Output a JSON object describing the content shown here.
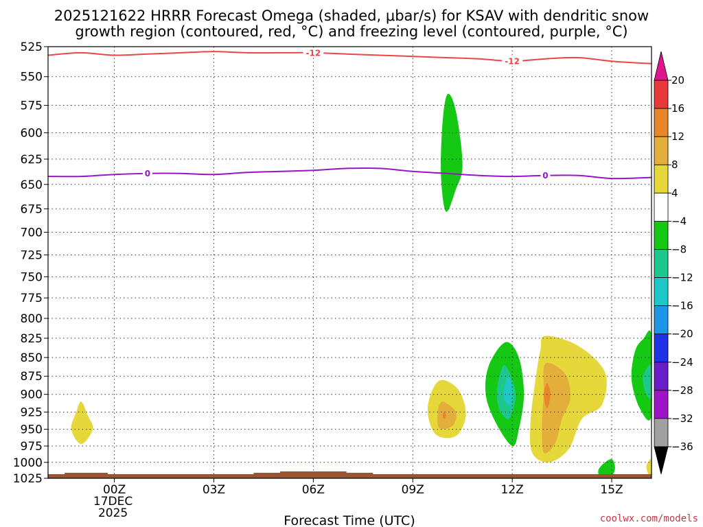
{
  "title": {
    "line1": "2025121622 HRRR Forecast Omega (shaded, μbar/s) for KSAV with dendritic snow",
    "line2": "growth region (contoured, red, °C) and freezing level (contoured, purple, °C)"
  },
  "watermark": "coolwx.com/models",
  "chart_data": {
    "type": "time-height cross section",
    "title": "2025121622 HRRR Forecast Omega (shaded, μbar/s) for KSAV with dendritic snow growth region (contoured, red, °C) and freezing level (contoured, purple, °C)",
    "xlabel": "Forecast Time (UTC)",
    "ylabel": "",
    "x_unit": "hours after 00Z 17DEC 2025",
    "xlim": [
      -2,
      16.2
    ],
    "x_ticks": [
      {
        "value": 0,
        "label": "00Z",
        "sub1": "17DEC",
        "sub2": "2025"
      },
      {
        "value": 3,
        "label": "03Z"
      },
      {
        "value": 6,
        "label": "06Z"
      },
      {
        "value": 9,
        "label": "09Z"
      },
      {
        "value": 12,
        "label": "12Z"
      },
      {
        "value": 15,
        "label": "15Z"
      }
    ],
    "ylim": [
      525,
      1025
    ],
    "y_ticks": [
      525,
      550,
      575,
      600,
      625,
      650,
      675,
      700,
      725,
      750,
      775,
      800,
      825,
      850,
      875,
      900,
      925,
      950,
      975,
      1000,
      1025
    ],
    "grid": "dotted",
    "colorbar": {
      "levels": [
        20,
        16,
        12,
        8,
        4,
        -4,
        -8,
        -12,
        -16,
        -20,
        -24,
        -28,
        -32,
        -36
      ],
      "colors": [
        "#e83a3a",
        "#e8862a",
        "#e4ae3a",
        "#e6d83a",
        "#ffffff",
        "#14c814",
        "#1ec88c",
        "#1ec8c8",
        "#1e96e6",
        "#1e32e6",
        "#6a1ec8",
        "#a014c8",
        "#a0a0a0"
      ],
      "top_arrow_color": "#e0148c",
      "bottom_arrow_color": "#000000"
    },
    "omega_features": [
      {
        "label": "ascent",
        "color": "#14c814",
        "outline": [
          [
            10.05,
            565
          ],
          [
            10.3,
            580
          ],
          [
            10.5,
            630
          ],
          [
            10.3,
            655
          ],
          [
            10.0,
            678
          ],
          [
            9.85,
            640
          ],
          [
            9.9,
            590
          ]
        ]
      },
      {
        "label": "descent",
        "color": "#e6d83a",
        "outline": [
          [
            -1.0,
            910
          ],
          [
            -0.8,
            930
          ],
          [
            -0.65,
            950
          ],
          [
            -1.0,
            972
          ],
          [
            -1.3,
            950
          ],
          [
            -1.15,
            925
          ]
        ]
      },
      {
        "label": "descent",
        "color": "#e6d83a",
        "outline": [
          [
            9.9,
            880
          ],
          [
            10.4,
            895
          ],
          [
            10.6,
            930
          ],
          [
            10.3,
            960
          ],
          [
            9.7,
            958
          ],
          [
            9.45,
            925
          ],
          [
            9.6,
            893
          ]
        ]
      },
      {
        "label": "descent",
        "color": "#e4ae3a",
        "outline": [
          [
            9.9,
            910
          ],
          [
            10.3,
            925
          ],
          [
            10.2,
            945
          ],
          [
            9.8,
            948
          ],
          [
            9.75,
            925
          ]
        ]
      },
      {
        "label": "descent",
        "color": "#e8862a",
        "outline": [
          [
            9.95,
            925
          ],
          [
            10.0,
            930
          ],
          [
            9.95,
            935
          ],
          [
            9.9,
            930
          ]
        ]
      },
      {
        "label": "ascent",
        "color": "#14c814",
        "outline": [
          [
            11.8,
            830
          ],
          [
            12.2,
            850
          ],
          [
            12.35,
            900
          ],
          [
            12.2,
            950
          ],
          [
            12.0,
            975
          ],
          [
            11.5,
            940
          ],
          [
            11.2,
            900
          ],
          [
            11.3,
            860
          ]
        ]
      },
      {
        "label": "ascent",
        "color": "#1ec88c",
        "outline": [
          [
            11.75,
            860
          ],
          [
            12.0,
            880
          ],
          [
            12.1,
            905
          ],
          [
            11.9,
            935
          ],
          [
            11.6,
            920
          ],
          [
            11.55,
            890
          ]
        ]
      },
      {
        "label": "ascent",
        "color": "#1ec8c8",
        "outline": [
          [
            11.9,
            875
          ],
          [
            12.0,
            895
          ],
          [
            11.95,
            915
          ],
          [
            11.75,
            905
          ],
          [
            11.8,
            885
          ]
        ]
      },
      {
        "label": "descent",
        "color": "#e6d83a",
        "outline": [
          [
            13.0,
            822
          ],
          [
            14.0,
            835
          ],
          [
            14.8,
            870
          ],
          [
            14.7,
            915
          ],
          [
            14.1,
            935
          ],
          [
            13.7,
            980
          ],
          [
            13.1,
            1000
          ],
          [
            12.6,
            985
          ],
          [
            12.55,
            940
          ],
          [
            12.7,
            880
          ],
          [
            12.85,
            840
          ]
        ]
      },
      {
        "label": "descent",
        "color": "#e4ae3a",
        "outline": [
          [
            13.0,
            858
          ],
          [
            13.6,
            872
          ],
          [
            13.75,
            905
          ],
          [
            13.5,
            935
          ],
          [
            13.3,
            970
          ],
          [
            12.95,
            985
          ],
          [
            12.9,
            940
          ],
          [
            12.95,
            900
          ]
        ]
      },
      {
        "label": "descent",
        "color": "#e8862a",
        "outline": [
          [
            13.05,
            885
          ],
          [
            13.15,
            900
          ],
          [
            13.05,
            920
          ],
          [
            12.95,
            900
          ]
        ]
      },
      {
        "label": "ascent",
        "color": "#14c814",
        "outline": [
          [
            16.2,
            822
          ],
          [
            16.2,
            930
          ],
          [
            15.85,
            920
          ],
          [
            15.6,
            880
          ],
          [
            15.7,
            842
          ],
          [
            15.95,
            826
          ]
        ]
      },
      {
        "label": "ascent",
        "color": "#1ec88c",
        "outline": [
          [
            16.2,
            860
          ],
          [
            16.2,
            905
          ],
          [
            16.0,
            895
          ],
          [
            15.95,
            875
          ]
        ]
      },
      {
        "label": "ascent",
        "color": "#14c814",
        "outline": [
          [
            15.0,
            995
          ],
          [
            15.1,
            1008
          ],
          [
            15.0,
            1020
          ],
          [
            14.65,
            1020
          ],
          [
            14.6,
            1012
          ],
          [
            14.75,
            1002
          ]
        ]
      },
      {
        "label": "descent",
        "color": "#e6d83a",
        "outline": [
          [
            16.2,
            995
          ],
          [
            16.2,
            1022
          ],
          [
            16.1,
            1018
          ],
          [
            16.05,
            1005
          ]
        ]
      }
    ],
    "contours": [
      {
        "name": "dendritic growth -12 °C",
        "color": "#ee4444",
        "label": "-12",
        "x": [
          -2,
          -1,
          0,
          1,
          2,
          3,
          4,
          5,
          6,
          7,
          8,
          9,
          10,
          11,
          12,
          13,
          14,
          15,
          16.2
        ],
        "y": [
          532,
          530,
          532,
          531,
          530,
          529,
          530,
          530,
          530,
          531,
          532,
          533,
          534,
          535,
          537,
          535,
          534,
          537,
          539
        ],
        "label_x": [
          6.0,
          12.0
        ]
      },
      {
        "name": "freezing level 0 °C",
        "color": "#9914c8",
        "label": "0",
        "x": [
          -2,
          -1,
          0,
          1,
          2,
          3,
          4,
          5,
          6,
          7,
          8,
          9,
          10,
          11,
          12,
          13,
          14,
          15,
          16.2
        ],
        "y": [
          642,
          642,
          640,
          639,
          639,
          640,
          638,
          637,
          636,
          634,
          634,
          637,
          639,
          641,
          642,
          641,
          641,
          644,
          643
        ],
        "label_x": [
          1.0,
          13.0
        ]
      }
    ],
    "ground": {
      "color": "#9a5530",
      "pressure": 1025
    }
  }
}
